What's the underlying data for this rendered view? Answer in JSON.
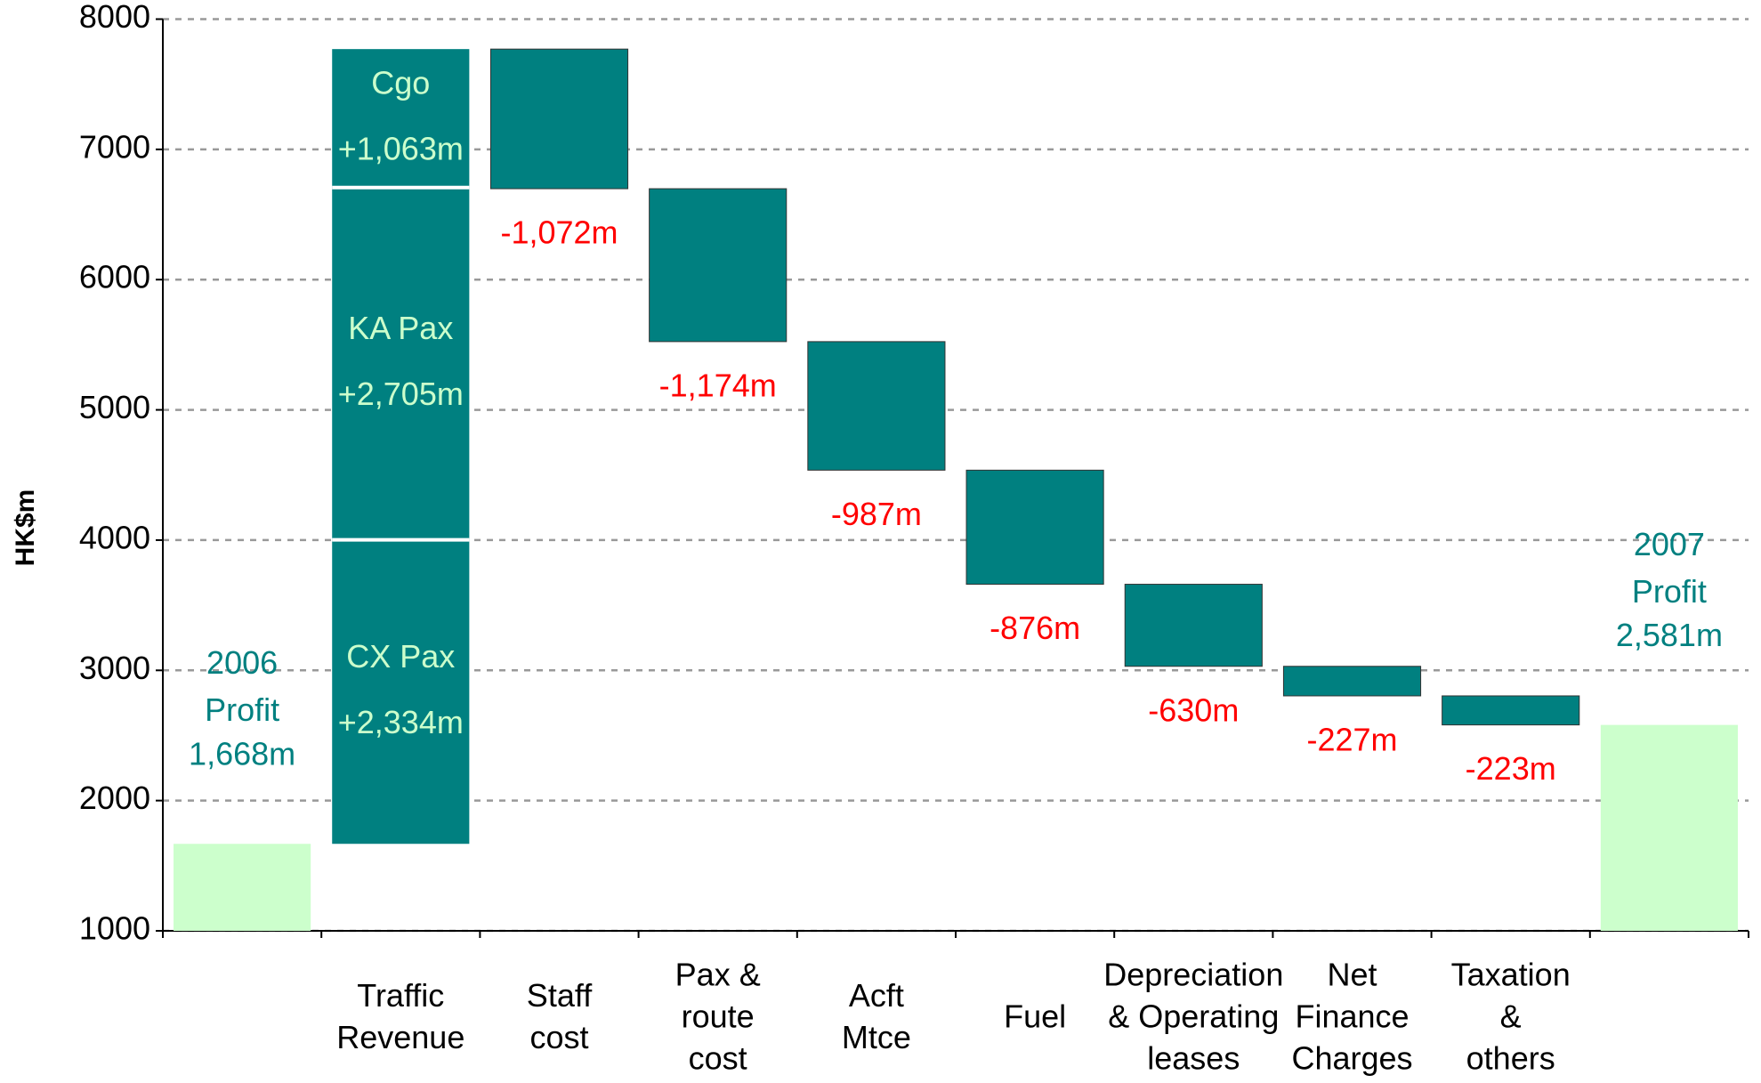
{
  "chart_data": {
    "type": "waterfall",
    "ylabel": "HK$m",
    "ylim": [
      1000,
      8000
    ],
    "yticks": [
      1000,
      2000,
      3000,
      4000,
      5000,
      6000,
      7000,
      8000
    ],
    "grid": true,
    "total_color": "#ccffcc",
    "change_color": "#008080",
    "total_label_color": "#008080",
    "segment_label_color": "#ccffcc",
    "decrease_label_color": "#ff0000",
    "categories": [
      null,
      "Traffic\nRevenue",
      "Staff\ncost",
      "Pax &\nroute\ncost",
      "Acft\nMtce",
      "Fuel",
      "Depreciation\n& Operating\nleases",
      "Net\nFinance\nCharges",
      "Taxation\n&\nothers",
      null
    ],
    "steps": [
      {
        "kind": "total",
        "label": "2006\nProfit",
        "value": 1668,
        "value_label": "1,668m"
      },
      {
        "kind": "increase",
        "segments": [
          {
            "label": "CX Pax",
            "value": 2334,
            "value_label": "+2,334m"
          },
          {
            "label": "KA Pax",
            "value": 2705,
            "value_label": "+2,705m"
          },
          {
            "label": "Cgo",
            "value": 1063,
            "value_label": "+1,063m"
          }
        ]
      },
      {
        "kind": "decrease",
        "value": -1072,
        "value_label": "-1,072m"
      },
      {
        "kind": "decrease",
        "value": -1174,
        "value_label": "-1,174m"
      },
      {
        "kind": "decrease",
        "value": -987,
        "value_label": "-987m"
      },
      {
        "kind": "decrease",
        "value": -876,
        "value_label": "-876m"
      },
      {
        "kind": "decrease",
        "value": -630,
        "value_label": "-630m"
      },
      {
        "kind": "decrease",
        "value": -227,
        "value_label": "-227m"
      },
      {
        "kind": "decrease",
        "value": -223,
        "value_label": "-223m"
      },
      {
        "kind": "total",
        "label": "2007\nProfit",
        "value": 2581,
        "value_label": "2,581m"
      }
    ]
  }
}
